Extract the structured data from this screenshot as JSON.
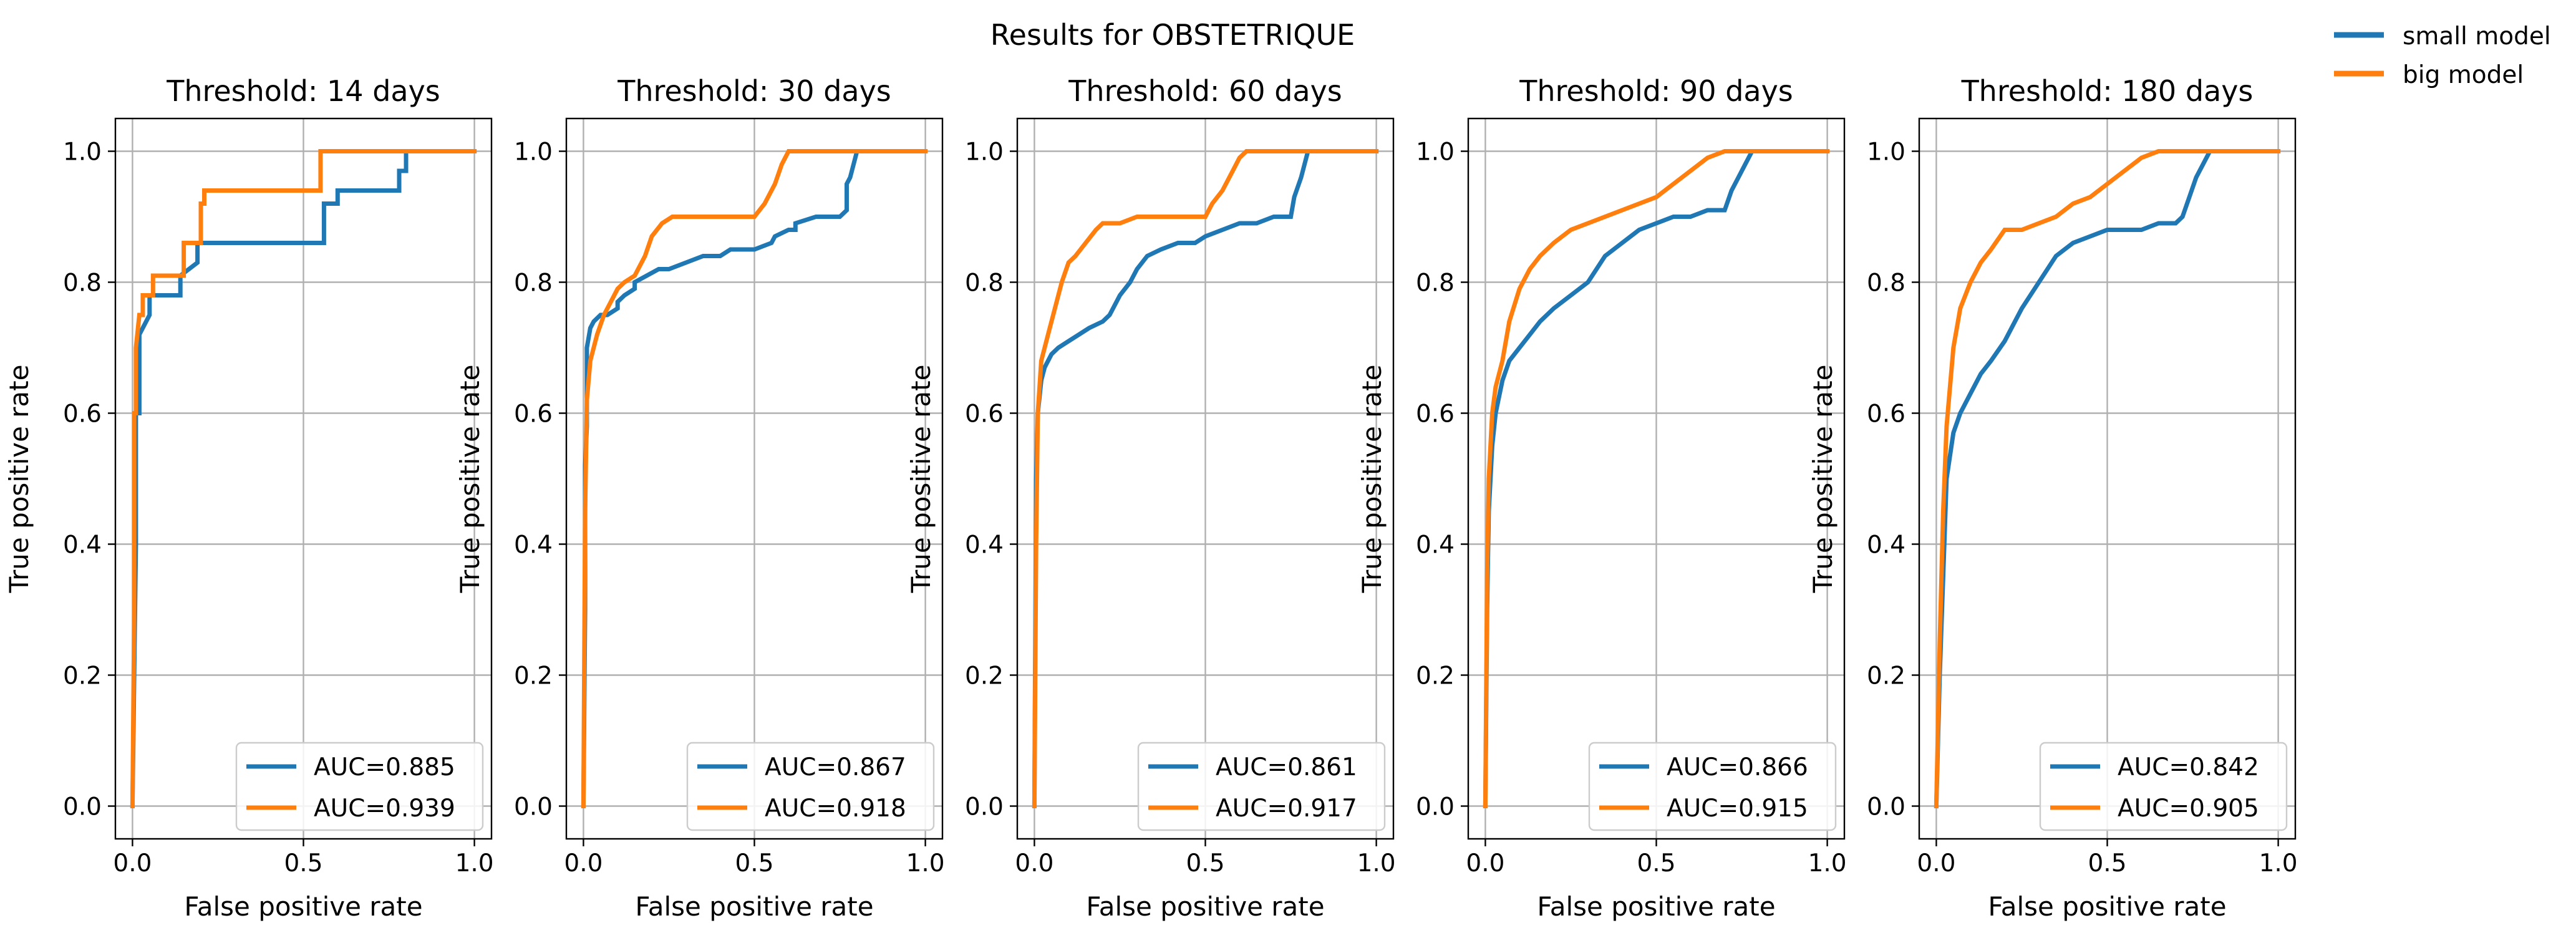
{
  "figure": {
    "suptitle": "Results for OBSTETRIQUE",
    "legend": {
      "placement": "upper-right (figure)",
      "entries": [
        {
          "label": "small model",
          "color": "#1f77b4"
        },
        {
          "label": "big model",
          "color": "#ff7f0e"
        }
      ]
    }
  },
  "chart_data": [
    {
      "type": "line",
      "title": "Threshold: 14 days",
      "xlabel": "False positive rate",
      "ylabel": "True positive rate",
      "xlim": [
        -0.05,
        1.05
      ],
      "ylim": [
        -0.05,
        1.05
      ],
      "xticks": [
        "0.0",
        "0.5",
        "1.0"
      ],
      "yticks": [
        "0.0",
        "0.2",
        "0.4",
        "0.6",
        "0.8",
        "1.0"
      ],
      "grid": true,
      "legend_placement": "lower right",
      "series": [
        {
          "name": "AUC=0.885",
          "color": "#1f77b4",
          "x": [
            0,
            0.01,
            0.01,
            0.02,
            0.02,
            0.05,
            0.05,
            0.14,
            0.14,
            0.19,
            0.19,
            0.56,
            0.56,
            0.6,
            0.6,
            0.78,
            0.78,
            0.8,
            0.8,
            1.0
          ],
          "y": [
            0,
            0.4,
            0.6,
            0.6,
            0.72,
            0.75,
            0.78,
            0.78,
            0.81,
            0.83,
            0.86,
            0.86,
            0.92,
            0.92,
            0.94,
            0.94,
            0.97,
            0.97,
            1.0,
            1.0
          ]
        },
        {
          "name": "AUC=0.939",
          "color": "#ff7f0e",
          "x": [
            0,
            0.005,
            0.005,
            0.01,
            0.01,
            0.02,
            0.03,
            0.03,
            0.06,
            0.06,
            0.15,
            0.15,
            0.2,
            0.2,
            0.21,
            0.21,
            0.55,
            0.55,
            1.0
          ],
          "y": [
            0,
            0.3,
            0.6,
            0.6,
            0.7,
            0.75,
            0.75,
            0.78,
            0.78,
            0.81,
            0.81,
            0.86,
            0.86,
            0.92,
            0.92,
            0.94,
            0.94,
            1.0,
            1.0
          ]
        }
      ]
    },
    {
      "type": "line",
      "title": "Threshold: 30 days",
      "xlabel": "False positive rate",
      "ylabel": "True positive rate",
      "xlim": [
        -0.05,
        1.05
      ],
      "ylim": [
        -0.05,
        1.05
      ],
      "xticks": [
        "0.0",
        "0.5",
        "1.0"
      ],
      "yticks": [
        "0.0",
        "0.2",
        "0.4",
        "0.6",
        "0.8",
        "1.0"
      ],
      "grid": true,
      "legend_placement": "lower right",
      "series": [
        {
          "name": "AUC=0.867",
          "color": "#1f77b4",
          "x": [
            0,
            0.005,
            0.005,
            0.01,
            0.01,
            0.02,
            0.03,
            0.05,
            0.07,
            0.1,
            0.1,
            0.12,
            0.15,
            0.15,
            0.22,
            0.25,
            0.3,
            0.35,
            0.4,
            0.43,
            0.5,
            0.55,
            0.56,
            0.6,
            0.62,
            0.62,
            0.68,
            0.75,
            0.77,
            0.77,
            0.78,
            0.79,
            0.8,
            1.0
          ],
          "y": [
            0,
            0.3,
            0.52,
            0.58,
            0.7,
            0.73,
            0.74,
            0.75,
            0.75,
            0.76,
            0.77,
            0.78,
            0.79,
            0.8,
            0.82,
            0.82,
            0.83,
            0.84,
            0.84,
            0.85,
            0.85,
            0.86,
            0.87,
            0.88,
            0.88,
            0.89,
            0.9,
            0.9,
            0.91,
            0.95,
            0.96,
            0.98,
            1.0,
            1.0
          ]
        },
        {
          "name": "AUC=0.918",
          "color": "#ff7f0e",
          "x": [
            0,
            0.005,
            0.01,
            0.02,
            0.04,
            0.06,
            0.08,
            0.1,
            0.12,
            0.15,
            0.18,
            0.2,
            0.23,
            0.26,
            0.3,
            0.5,
            0.53,
            0.56,
            0.58,
            0.6,
            1.0
          ],
          "y": [
            0,
            0.45,
            0.62,
            0.68,
            0.72,
            0.75,
            0.77,
            0.79,
            0.8,
            0.81,
            0.84,
            0.87,
            0.89,
            0.9,
            0.9,
            0.9,
            0.92,
            0.95,
            0.98,
            1.0,
            1.0
          ]
        }
      ]
    },
    {
      "type": "line",
      "title": "Threshold: 60 days",
      "xlabel": "False positive rate",
      "ylabel": "True positive rate",
      "xlim": [
        -0.05,
        1.05
      ],
      "ylim": [
        -0.05,
        1.05
      ],
      "xticks": [
        "0.0",
        "0.5",
        "1.0"
      ],
      "yticks": [
        "0.0",
        "0.2",
        "0.4",
        "0.6",
        "0.8",
        "1.0"
      ],
      "grid": true,
      "legend_placement": "lower right",
      "series": [
        {
          "name": "AUC=0.861",
          "color": "#1f77b4",
          "x": [
            0,
            0.005,
            0.01,
            0.02,
            0.03,
            0.05,
            0.07,
            0.1,
            0.13,
            0.16,
            0.2,
            0.22,
            0.25,
            0.28,
            0.3,
            0.33,
            0.37,
            0.42,
            0.47,
            0.5,
            0.55,
            0.6,
            0.65,
            0.7,
            0.75,
            0.76,
            0.78,
            0.8,
            1.0
          ],
          "y": [
            0,
            0.5,
            0.6,
            0.65,
            0.67,
            0.69,
            0.7,
            0.71,
            0.72,
            0.73,
            0.74,
            0.75,
            0.78,
            0.8,
            0.82,
            0.84,
            0.85,
            0.86,
            0.86,
            0.87,
            0.88,
            0.89,
            0.89,
            0.9,
            0.9,
            0.93,
            0.96,
            1.0,
            1.0
          ]
        },
        {
          "name": "AUC=0.917",
          "color": "#ff7f0e",
          "x": [
            0,
            0.005,
            0.01,
            0.02,
            0.04,
            0.06,
            0.08,
            0.1,
            0.12,
            0.15,
            0.18,
            0.2,
            0.25,
            0.3,
            0.5,
            0.52,
            0.55,
            0.58,
            0.6,
            0.62,
            1.0
          ],
          "y": [
            0,
            0.4,
            0.6,
            0.68,
            0.72,
            0.76,
            0.8,
            0.83,
            0.84,
            0.86,
            0.88,
            0.89,
            0.89,
            0.9,
            0.9,
            0.92,
            0.94,
            0.97,
            0.99,
            1.0,
            1.0
          ]
        }
      ]
    },
    {
      "type": "line",
      "title": "Threshold: 90 days",
      "xlabel": "False positive rate",
      "ylabel": "True positive rate",
      "xlim": [
        -0.05,
        1.05
      ],
      "ylim": [
        -0.05,
        1.05
      ],
      "xticks": [
        "0.0",
        "0.5",
        "1.0"
      ],
      "yticks": [
        "0.0",
        "0.2",
        "0.4",
        "0.6",
        "0.8",
        "1.0"
      ],
      "grid": true,
      "legend_placement": "lower right",
      "series": [
        {
          "name": "AUC=0.866",
          "color": "#1f77b4",
          "x": [
            0,
            0.005,
            0.01,
            0.02,
            0.03,
            0.05,
            0.07,
            0.1,
            0.13,
            0.16,
            0.2,
            0.25,
            0.3,
            0.35,
            0.4,
            0.45,
            0.5,
            0.55,
            0.6,
            0.65,
            0.7,
            0.72,
            0.74,
            0.76,
            0.78,
            1.0
          ],
          "y": [
            0,
            0.3,
            0.45,
            0.55,
            0.6,
            0.65,
            0.68,
            0.7,
            0.72,
            0.74,
            0.76,
            0.78,
            0.8,
            0.84,
            0.86,
            0.88,
            0.89,
            0.9,
            0.9,
            0.91,
            0.91,
            0.94,
            0.96,
            0.98,
            1.0,
            1.0
          ]
        },
        {
          "name": "AUC=0.915",
          "color": "#ff7f0e",
          "x": [
            0,
            0.005,
            0.01,
            0.02,
            0.03,
            0.05,
            0.07,
            0.1,
            0.13,
            0.16,
            0.2,
            0.25,
            0.3,
            0.35,
            0.4,
            0.45,
            0.5,
            0.55,
            0.6,
            0.65,
            0.7,
            0.75,
            1.0
          ],
          "y": [
            0,
            0.35,
            0.5,
            0.6,
            0.64,
            0.68,
            0.74,
            0.79,
            0.82,
            0.84,
            0.86,
            0.88,
            0.89,
            0.9,
            0.91,
            0.92,
            0.93,
            0.95,
            0.97,
            0.99,
            1.0,
            1.0,
            1.0
          ]
        }
      ]
    },
    {
      "type": "line",
      "title": "Threshold: 180 days",
      "xlabel": "False positive rate",
      "ylabel": "True positive rate",
      "xlim": [
        -0.05,
        1.05
      ],
      "ylim": [
        -0.05,
        1.05
      ],
      "xticks": [
        "0.0",
        "0.5",
        "1.0"
      ],
      "yticks": [
        "0.0",
        "0.2",
        "0.4",
        "0.6",
        "0.8",
        "1.0"
      ],
      "grid": true,
      "legend_placement": "lower right",
      "series": [
        {
          "name": "AUC=0.842",
          "color": "#1f77b4",
          "x": [
            0,
            0.01,
            0.02,
            0.03,
            0.05,
            0.07,
            0.1,
            0.13,
            0.16,
            0.2,
            0.25,
            0.3,
            0.35,
            0.4,
            0.45,
            0.5,
            0.55,
            0.6,
            0.65,
            0.7,
            0.72,
            0.74,
            0.76,
            0.78,
            0.8,
            1.0
          ],
          "y": [
            0,
            0.2,
            0.35,
            0.5,
            0.57,
            0.6,
            0.63,
            0.66,
            0.68,
            0.71,
            0.76,
            0.8,
            0.84,
            0.86,
            0.87,
            0.88,
            0.88,
            0.88,
            0.89,
            0.89,
            0.9,
            0.93,
            0.96,
            0.98,
            1.0,
            1.0
          ]
        },
        {
          "name": "AUC=0.905",
          "color": "#ff7f0e",
          "x": [
            0,
            0.01,
            0.02,
            0.03,
            0.05,
            0.07,
            0.1,
            0.13,
            0.16,
            0.2,
            0.25,
            0.3,
            0.35,
            0.4,
            0.45,
            0.5,
            0.55,
            0.6,
            0.65,
            1.0
          ],
          "y": [
            0,
            0.25,
            0.45,
            0.58,
            0.7,
            0.76,
            0.8,
            0.83,
            0.85,
            0.88,
            0.88,
            0.89,
            0.9,
            0.92,
            0.93,
            0.95,
            0.97,
            0.99,
            1.0,
            1.0
          ]
        }
      ]
    }
  ]
}
